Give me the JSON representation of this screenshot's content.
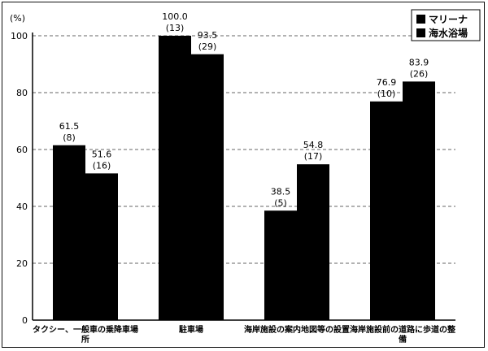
{
  "chart_data": {
    "type": "bar",
    "ylabel": "(%)",
    "ylim": [
      0,
      100
    ],
    "yticks": [
      0,
      20,
      40,
      60,
      80,
      100
    ],
    "grid": "dashed horizontal",
    "legend_position": "top-right",
    "colors": [
      "#000000",
      "#000000"
    ],
    "categories": [
      [
        "タクシー、一般車の乗降車場",
        "所"
      ],
      [
        "駐車場"
      ],
      [
        "海岸施設の案内地図等の設置"
      ],
      [
        "海岸施設前の道路に歩道の整",
        "備"
      ]
    ],
    "series": [
      {
        "name": "マリーナ",
        "values": [
          61.5,
          100.0,
          38.5,
          76.9
        ],
        "counts": [
          "(8)",
          "(13)",
          "(5)",
          "(10)"
        ]
      },
      {
        "name": "海水浴場",
        "values": [
          51.6,
          93.5,
          54.8,
          83.9
        ],
        "counts": [
          "(16)",
          "(29)",
          "(17)",
          "(26)"
        ]
      }
    ]
  }
}
